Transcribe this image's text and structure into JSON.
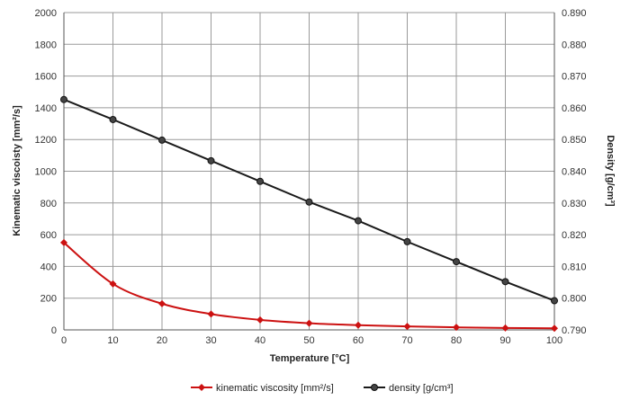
{
  "chart_data": {
    "type": "line",
    "x": [
      0,
      10,
      20,
      30,
      40,
      50,
      60,
      70,
      80,
      90,
      100
    ],
    "xlabel": "Temperature  [°C]",
    "ylabel_left": "Kinematic viscoisty  [mm²/s]",
    "ylabel_right": "Density  [g/cm³]",
    "xlim": [
      0,
      100
    ],
    "ylim_left": [
      0,
      2000
    ],
    "ylim_right": [
      0.79,
      0.89
    ],
    "x_ticks": [
      "0",
      "10",
      "20",
      "30",
      "40",
      "50",
      "60",
      "70",
      "80",
      "90",
      "100"
    ],
    "y_left_ticks": [
      "0",
      "200",
      "400",
      "600",
      "800",
      "1000",
      "1200",
      "1400",
      "1600",
      "1800",
      "2000"
    ],
    "y_right_ticks": [
      "0.790",
      "0.800",
      "0.810",
      "0.820",
      "0.830",
      "0.840",
      "0.850",
      "0.860",
      "0.870",
      "0.880",
      "0.890"
    ],
    "grid": true,
    "legend_position": "bottom",
    "series": [
      {
        "name": "kinematic viscosity [mm²/s]",
        "axis": "left",
        "color": "#cc1111",
        "marker": "diamond",
        "values": [
          550,
          290,
          165,
          100,
          63,
          42,
          30,
          22,
          16,
          12,
          10
        ]
      },
      {
        "name": "density [g/cm³]",
        "axis": "right",
        "color": "#1a1a1a",
        "marker": "circle",
        "values": [
          0.8626,
          0.8563,
          0.8498,
          0.8433,
          0.8368,
          0.8303,
          0.8244,
          0.8178,
          0.8115,
          0.8052,
          0.7992
        ]
      }
    ]
  }
}
